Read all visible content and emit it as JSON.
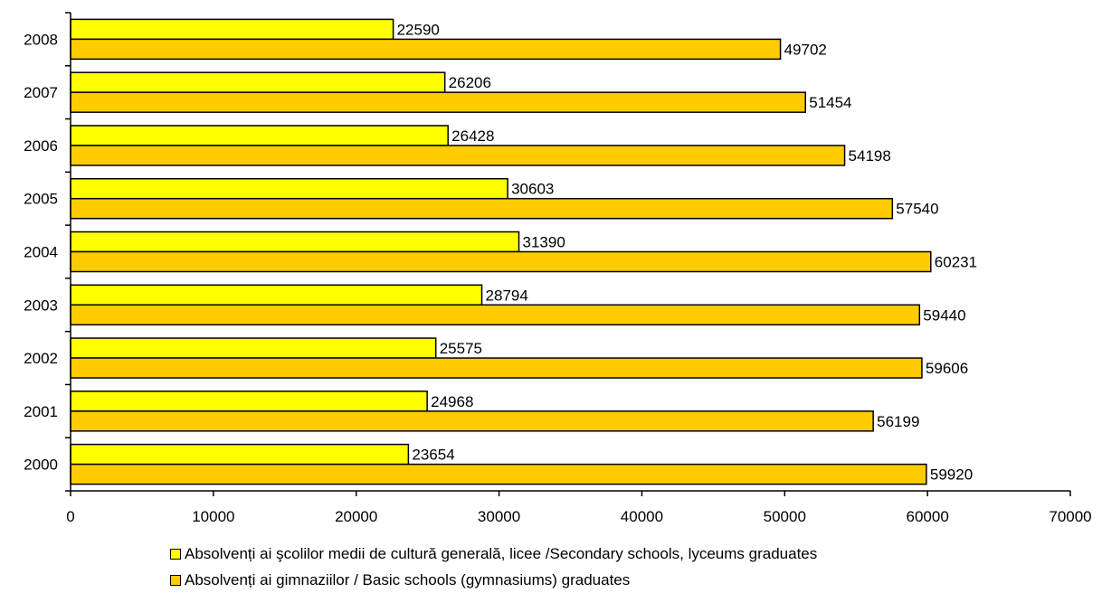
{
  "chart_data": {
    "type": "bar",
    "orientation": "horizontal",
    "categories": [
      "2000",
      "2001",
      "2002",
      "2003",
      "2004",
      "2005",
      "2006",
      "2007",
      "2008"
    ],
    "series": [
      {
        "name": "Absolvenți ai şcolilor medii de cultură generală, licee /Secondary schools, lyceums graduates",
        "color": "#ffff00",
        "values": [
          23654,
          24968,
          25575,
          28794,
          31390,
          30603,
          26428,
          26206,
          22590
        ]
      },
      {
        "name": "Absolvenți ai gimnaziilor / Basic schools (gymnasiums) graduates",
        "color": "#ffcc00",
        "values": [
          59920,
          56199,
          59606,
          59440,
          60231,
          57540,
          54198,
          51454,
          49702
        ]
      }
    ],
    "xlim": [
      0,
      70000
    ],
    "xticks": [
      0,
      10000,
      20000,
      30000,
      40000,
      50000,
      60000,
      70000
    ],
    "data_labels": true,
    "grid": false,
    "legend_position": "bottom"
  }
}
